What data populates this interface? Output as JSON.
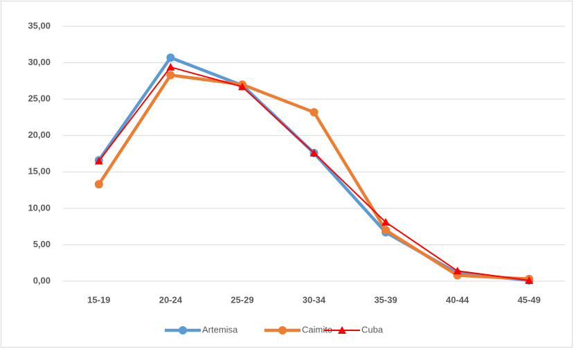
{
  "chart_data": {
    "type": "line",
    "categories": [
      "15-19",
      "20-24",
      "25-29",
      "30-34",
      "35-39",
      "40-44",
      "45-49"
    ],
    "series": [
      {
        "name": "Artemisa",
        "color": "#5b9bd5",
        "marker": "circle",
        "values": [
          16.6,
          30.7,
          26.9,
          17.6,
          6.7,
          1.1,
          0.1
        ]
      },
      {
        "name": "Caimito",
        "color": "#ed7d31",
        "marker": "circle",
        "values": [
          13.3,
          28.3,
          27.0,
          23.2,
          7.0,
          0.8,
          0.3
        ]
      },
      {
        "name": "Cuba",
        "color": "#ff0000",
        "marker": "triangle",
        "values": [
          16.5,
          29.4,
          26.7,
          17.6,
          8.1,
          1.4,
          0.1
        ]
      }
    ],
    "ylim": [
      0,
      35
    ],
    "yticks": [
      {
        "value": 0,
        "label": "0,00"
      },
      {
        "value": 5,
        "label": "5,00"
      },
      {
        "value": 10,
        "label": "10,00"
      },
      {
        "value": 15,
        "label": "15,00"
      },
      {
        "value": 20,
        "label": "20,00"
      },
      {
        "value": 25,
        "label": "25,00"
      },
      {
        "value": 30,
        "label": "30,00"
      },
      {
        "value": 35,
        "label": "35,00"
      }
    ],
    "grid": true,
    "legend": "bottom"
  }
}
